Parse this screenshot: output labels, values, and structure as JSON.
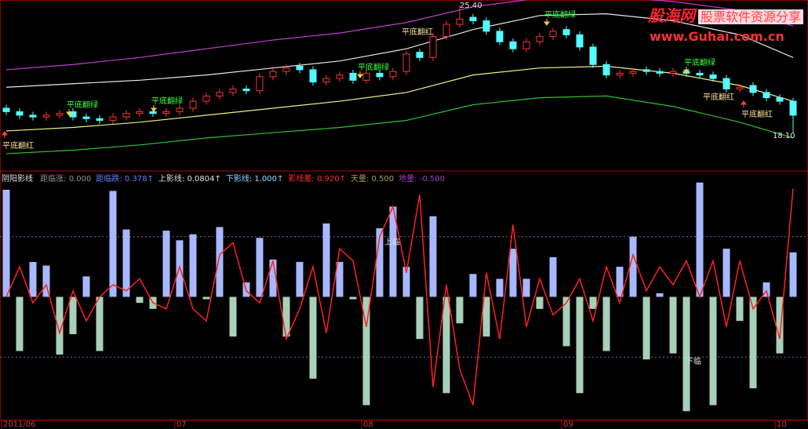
{
  "chart_data": [
    {
      "type": "candlestick",
      "ylim": [
        16.0,
        25.6
      ],
      "up_color": "#ff3232",
      "down_color": "#54fcfc",
      "open": [
        19.5,
        19.3,
        19.1,
        19.0,
        19.1,
        19.3,
        19.0,
        18.9,
        18.8,
        19.0,
        19.2,
        19.3,
        19.2,
        19.3,
        19.5,
        19.9,
        20.2,
        20.4,
        20.6,
        20.5,
        21.3,
        21.6,
        21.9,
        21.7,
        21.0,
        21.2,
        21.5,
        21.1,
        21.5,
        21.3,
        21.6,
        22.7,
        22.4,
        23.6,
        24.3,
        24.7,
        24.5,
        23.9,
        23.3,
        22.9,
        23.3,
        23.6,
        24.0,
        23.7,
        23.0,
        22.0,
        21.4,
        21.5,
        21.7,
        21.6,
        21.5,
        21.6,
        21.5,
        21.4,
        21.2,
        20.6,
        20.8,
        20.4,
        20.1,
        19.9
      ],
      "close": [
        19.3,
        19.1,
        19.0,
        19.1,
        19.2,
        19.0,
        18.9,
        18.8,
        19.0,
        19.2,
        19.3,
        19.2,
        19.3,
        19.5,
        19.9,
        20.2,
        20.4,
        20.6,
        20.5,
        21.3,
        21.6,
        21.8,
        21.7,
        21.0,
        21.2,
        21.4,
        21.1,
        21.5,
        21.3,
        21.6,
        22.6,
        22.4,
        23.6,
        24.3,
        24.6,
        24.5,
        23.9,
        23.3,
        22.9,
        23.3,
        23.6,
        23.9,
        23.7,
        23.0,
        22.0,
        21.4,
        21.5,
        21.6,
        21.6,
        21.5,
        21.6,
        21.5,
        21.4,
        21.2,
        20.6,
        20.7,
        20.4,
        20.1,
        19.9,
        19.1
      ],
      "high": [
        19.7,
        19.5,
        19.3,
        19.3,
        19.4,
        19.5,
        19.2,
        19.1,
        19.2,
        19.4,
        19.5,
        19.5,
        19.5,
        19.7,
        20.1,
        20.4,
        20.6,
        20.8,
        20.8,
        21.5,
        21.8,
        22.0,
        22.1,
        21.9,
        21.4,
        21.6,
        21.7,
        21.7,
        21.7,
        21.8,
        22.8,
        22.9,
        23.8,
        24.5,
        25.4,
        24.9,
        24.7,
        24.1,
        23.5,
        23.5,
        23.8,
        24.1,
        24.2,
        23.9,
        23.2,
        22.2,
        21.7,
        21.8,
        21.9,
        21.8,
        21.8,
        21.8,
        21.7,
        21.6,
        21.4,
        20.9,
        21.0,
        20.6,
        20.3,
        20.1
      ],
      "low": [
        19.1,
        18.9,
        18.8,
        18.8,
        18.9,
        18.8,
        18.7,
        18.6,
        18.6,
        18.8,
        19.0,
        19.0,
        19.0,
        19.1,
        19.3,
        19.7,
        20.0,
        20.2,
        20.3,
        20.3,
        21.1,
        21.4,
        21.5,
        20.8,
        20.8,
        21.0,
        20.9,
        20.9,
        21.1,
        21.1,
        21.4,
        22.2,
        22.2,
        23.4,
        24.1,
        24.3,
        23.7,
        23.1,
        22.7,
        22.7,
        23.1,
        23.4,
        23.5,
        22.8,
        21.8,
        21.2,
        21.2,
        21.3,
        21.4,
        21.3,
        21.3,
        21.3,
        21.2,
        21.0,
        20.4,
        20.4,
        20.2,
        19.9,
        19.7,
        18.1
      ],
      "bands": {
        "x": [
          0,
          5,
          10,
          15,
          20,
          25,
          30,
          35,
          40,
          45,
          50,
          55,
          59
        ],
        "series": [
          {
            "color": "#c040d0",
            "values": [
              21.7,
              22.0,
              22.4,
              22.9,
              23.4,
              23.8,
              24.4,
              25.3,
              25.8,
              25.9,
              25.6,
              25.1,
              24.2
            ]
          },
          {
            "color": "#e8e8e8",
            "values": [
              20.7,
              20.9,
              21.1,
              21.4,
              21.8,
              22.2,
              22.9,
              24.0,
              24.8,
              24.9,
              24.5,
              23.7,
              22.4
            ]
          },
          {
            "color": "#f0f080",
            "values": [
              18.2,
              18.4,
              18.7,
              19.1,
              19.5,
              19.9,
              20.4,
              21.4,
              21.8,
              21.9,
              21.5,
              20.8,
              19.9
            ]
          },
          {
            "color": "#30c030",
            "values": [
              16.9,
              17.1,
              17.4,
              17.8,
              18.1,
              18.4,
              18.8,
              19.7,
              20.1,
              20.2,
              19.6,
              18.7,
              17.8
            ]
          }
        ]
      },
      "annotations": [
        "平底翻红",
        "平底翻绿",
        "平底翻绿",
        "平底翻绿",
        "平底翻红",
        "平底翻绿",
        "平底翻绿",
        "平底翻红",
        "平底翻红",
        "25.40",
        "18.10"
      ]
    },
    {
      "type": "combo",
      "title": "阴阳影线",
      "readouts": [
        {
          "text": "距临涨: 0.000",
          "color": "#909090"
        },
        {
          "text": "距临跌: 0.378↑",
          "color": "#6080ff"
        },
        {
          "text": "上影线: 0.0804↑",
          "color": "#e0e0e0"
        },
        {
          "text": "下影线: 1.000↑",
          "color": "#80e0ff"
        },
        {
          "text": "影线差: 0.920↑",
          "color": "#ff3030"
        },
        {
          "text": "天量: 0.500",
          "color": "#a0a060"
        },
        {
          "text": "地量: -0.500",
          "color": "#a040c0"
        }
      ],
      "ylim": [
        -1.02,
        1.02
      ],
      "reference_lines": [
        0.5,
        -0.5
      ],
      "reference_color": "#8060a0",
      "categories": [
        "2011/06",
        null,
        null,
        null,
        null,
        null,
        null,
        null,
        null,
        null,
        null,
        null,
        null,
        "07",
        null,
        null,
        null,
        null,
        null,
        null,
        null,
        null,
        null,
        null,
        null,
        null,
        null,
        "08",
        null,
        null,
        null,
        null,
        null,
        null,
        null,
        null,
        null,
        null,
        null,
        null,
        null,
        null,
        "09",
        null,
        null,
        null,
        null,
        null,
        null,
        null,
        null,
        null,
        null,
        null,
        null,
        null,
        null,
        null,
        "10",
        null
      ],
      "bars": {
        "up_color": "#a8b8ff",
        "down_color": "#a8d0b8",
        "values": [
          0.89,
          -0.45,
          0.29,
          0.26,
          -0.48,
          -0.31,
          0.17,
          -0.45,
          0.88,
          0.56,
          -0.05,
          -0.1,
          0.55,
          0.47,
          0.52,
          -0.02,
          0.58,
          -0.33,
          0.12,
          0.49,
          0.31,
          -0.33,
          0.29,
          -0.68,
          0.61,
          0.29,
          -0.02,
          -0.9,
          0.57,
          0.75,
          0.25,
          -0.35,
          0.67,
          -0.8,
          -0.22,
          0.19,
          -0.33,
          0.15,
          0.4,
          0.15,
          -0.1,
          0.33,
          -0.41,
          -0.8,
          -0.1,
          -0.45,
          0.25,
          0.5,
          -0.52,
          0.03,
          -0.47,
          -0.95,
          0.95,
          -0.9,
          0.4,
          -0.2,
          -0.76,
          0.12,
          -0.47,
          0.37
        ]
      },
      "line": {
        "color": "#ff2020",
        "values": [
          0.0,
          0.25,
          -0.05,
          0.1,
          -0.3,
          0.05,
          -0.2,
          0.0,
          0.1,
          0.05,
          0.15,
          -0.05,
          -0.1,
          0.25,
          -0.1,
          -0.2,
          0.35,
          0.45,
          0.05,
          -0.05,
          0.3,
          -0.35,
          -0.1,
          0.25,
          -0.3,
          0.4,
          0.3,
          -0.25,
          0.5,
          0.75,
          0.2,
          0.85,
          -0.75,
          0.1,
          -0.6,
          -0.9,
          0.2,
          -0.35,
          0.6,
          -0.25,
          0.15,
          -0.15,
          -0.05,
          0.15,
          -0.2,
          0.25,
          -0.05,
          0.35,
          0.05,
          0.25,
          0.1,
          0.3,
          0.0,
          0.3,
          -0.25,
          0.3,
          -0.1,
          0.05,
          -0.35,
          0.9
        ]
      },
      "annotations": [
        "上临",
        "下临"
      ]
    }
  ],
  "watermark": {
    "logo": "股海网",
    "slogan": "股票软件资源分享",
    "url": "www.Guhai.com.cn"
  }
}
